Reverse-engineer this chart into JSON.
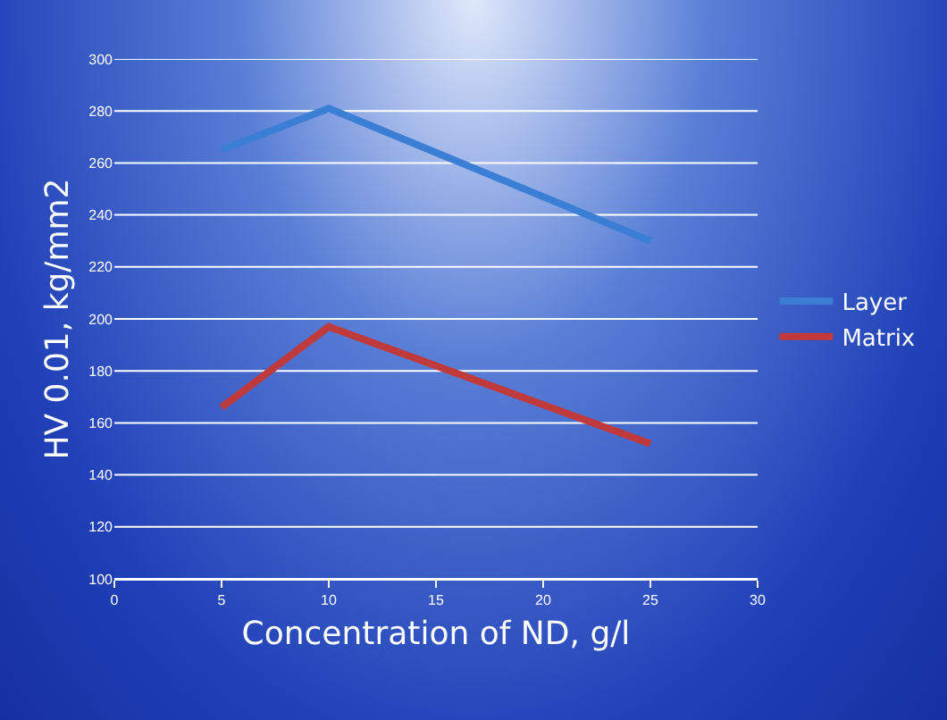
{
  "chart_data": {
    "type": "line",
    "xlabel": "Concentration of ND, g/l",
    "ylabel": "HV 0.01, kg/mm2",
    "x": [
      5,
      10,
      25
    ],
    "series": [
      {
        "name": "Layer",
        "color": "#3a7fd5",
        "values": [
          265,
          281,
          230
        ]
      },
      {
        "name": "Matrix",
        "color": "#c0393b",
        "values": [
          166,
          197,
          152
        ]
      }
    ],
    "xlim": [
      0,
      30
    ],
    "xticks": [
      0,
      5,
      10,
      15,
      20,
      25,
      30
    ],
    "ylim": [
      100,
      300
    ],
    "yticks": [
      100,
      120,
      140,
      160,
      180,
      200,
      220,
      240,
      260,
      280,
      300
    ],
    "grid": "y",
    "legend": "right",
    "marker": "none",
    "line_style": "solid"
  }
}
